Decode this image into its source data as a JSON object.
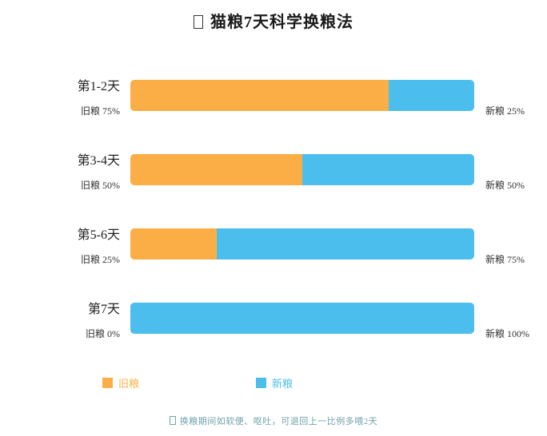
{
  "title": {
    "icon": "missing-glyph-box",
    "text": "猫粮7天科学换粮法"
  },
  "colors": {
    "old": "#FBAE45",
    "new": "#4CBEED"
  },
  "chart_data": {
    "type": "bar",
    "orientation": "horizontal",
    "stacked": true,
    "title": "猫粮7天科学换粮法",
    "categories": [
      "第1-2天",
      "第3-4天",
      "第5-6天",
      "第7天"
    ],
    "series": [
      {
        "name": "旧粮",
        "color": "#FBAE45",
        "values": [
          75,
          50,
          25,
          0
        ]
      },
      {
        "name": "新粮",
        "color": "#4CBEED",
        "values": [
          25,
          50,
          75,
          100
        ]
      }
    ],
    "value_unit": "%",
    "xlim": [
      0,
      100
    ],
    "grid": false,
    "legend_position": "bottom",
    "annotation": "换粮期间如软便、呕吐，可退回上一比例多喂2天"
  },
  "rows": [
    {
      "day": "第1-2天",
      "old": 75,
      "new": 25,
      "old_label": "旧粮 75%",
      "new_label": "新粮 25%"
    },
    {
      "day": "第3-4天",
      "old": 50,
      "new": 50,
      "old_label": "旧粮 50%",
      "new_label": "新粮 50%"
    },
    {
      "day": "第5-6天",
      "old": 25,
      "new": 75,
      "old_label": "旧粮 25%",
      "new_label": "新粮 75%"
    },
    {
      "day": "第7天",
      "old": 0,
      "new": 100,
      "old_label": "旧粮 0%",
      "new_label": "新粮 100%"
    }
  ],
  "legend": {
    "old_label": "旧粮",
    "new_label": "新粮"
  },
  "footer": {
    "icon": "missing-glyph-box",
    "text": "换粮期间如软便、呕吐，可退回上一比例多喂2天"
  }
}
